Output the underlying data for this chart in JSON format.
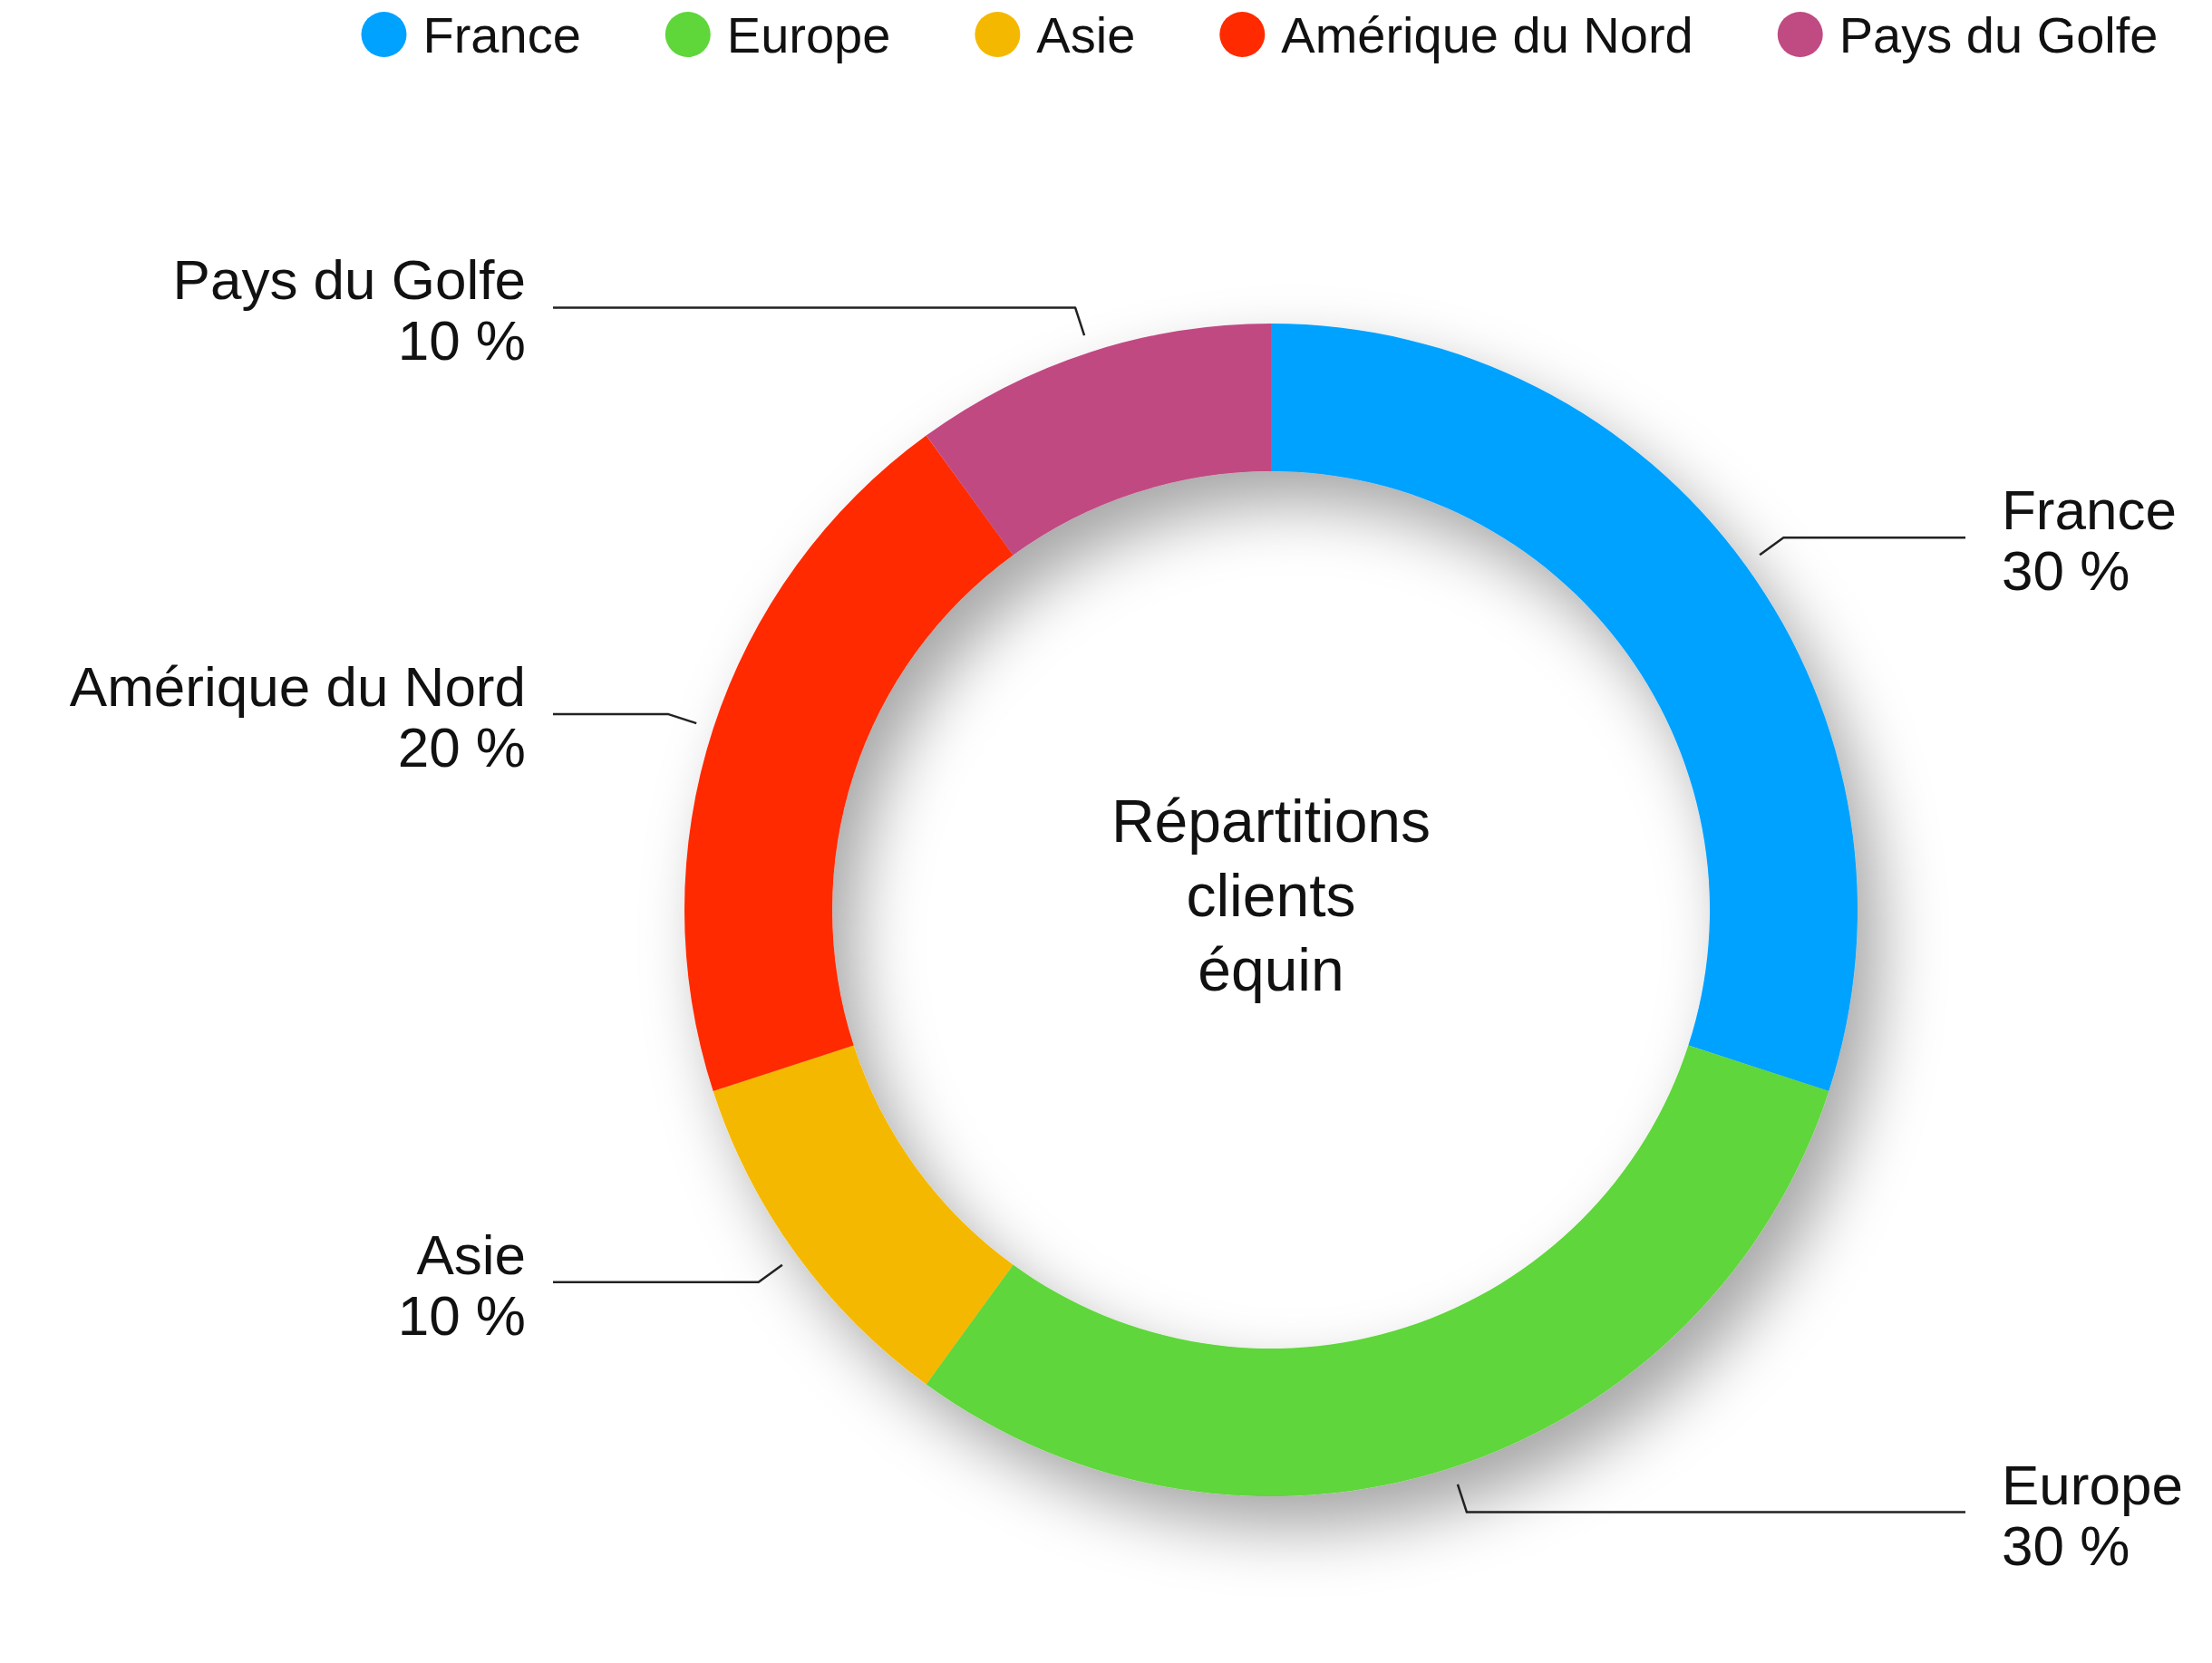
{
  "chart_data": {
    "type": "donut",
    "title": "Répartitions clients équin",
    "categories": [
      "France",
      "Europe",
      "Asie",
      "Amérique du Nord",
      "Pays du Golfe"
    ],
    "values": [
      30,
      30,
      10,
      20,
      10
    ],
    "colors": [
      "#00a2ff",
      "#5fd63a",
      "#f5b800",
      "#ff2a00",
      "#c04a82"
    ],
    "value_labels": [
      "30 %",
      "30 %",
      "10 %",
      "20 %",
      "10 %"
    ],
    "legend": "top"
  }
}
